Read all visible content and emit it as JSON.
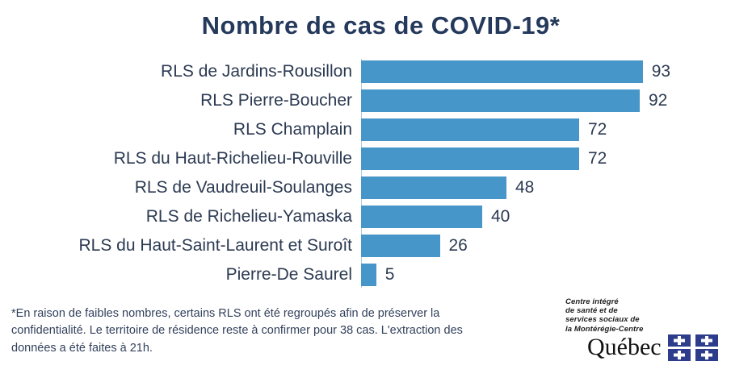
{
  "title": "Nombre de cas de COVID-19*",
  "chart_data": {
    "type": "bar",
    "orientation": "horizontal",
    "title": "Nombre de cas de COVID-19*",
    "categories": [
      "RLS de Jardins-Rousillon",
      "RLS Pierre-Boucher",
      "RLS Champlain",
      "RLS du Haut-Richelieu-Rouville",
      "RLS de Vaudreuil-Soulanges",
      "RLS de Richelieu-Yamaska",
      "RLS du Haut-Saint-Laurent et Suroît",
      "Pierre-De Saurel"
    ],
    "values": [
      93,
      92,
      72,
      72,
      48,
      40,
      26,
      5
    ],
    "xlim": [
      0,
      100
    ],
    "value_labels_shown": true,
    "legend": "none",
    "grid": false
  },
  "footnote": {
    "lines": [
      "*En raison de faibles nombres, certains RLS ont été regroupés afin de préserver la",
      "confidentialité. Le territoire de résidence reste à confirmer pour 38 cas.  L'extraction des",
      "données a été faites à 21h."
    ]
  },
  "logo": {
    "org_name_lines": [
      "Centre intégré",
      "de santé et de",
      "services sociaux de",
      "la Montérégie-Centre"
    ],
    "wordmark": "Québec"
  },
  "colors": {
    "page_background": "#FFFFFF",
    "title_text": "#24395B",
    "label_text": "#2C3A52",
    "bar": "#4796C9",
    "axis_line": "#AECBDE",
    "footnote_text": "#33415C",
    "logo_text": "#1F1E21",
    "flag_blue": "#2D3D8B"
  }
}
